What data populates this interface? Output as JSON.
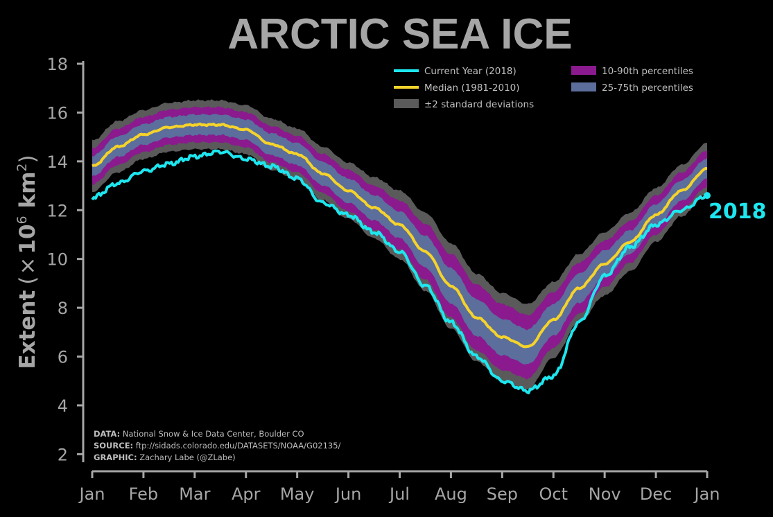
{
  "chart_data": {
    "type": "line",
    "title": "ARCTIC SEA ICE",
    "ylabel": "Extent (×10⁶ km²)",
    "ylabel_parts": {
      "main": "Extent",
      "open": "(",
      "times": "×",
      "base": "10",
      "exp1": "6",
      "unit": " km",
      "exp2": "2",
      "close": ")"
    },
    "ylim": [
      1.3,
      18
    ],
    "yticks": [
      "2",
      "4",
      "6",
      "8",
      "10",
      "12",
      "14",
      "16",
      "18"
    ],
    "xticks": [
      "Jan",
      "Feb",
      "Mar",
      "Apr",
      "May",
      "Jun",
      "Jul",
      "Aug",
      "Sep",
      "Oct",
      "Nov",
      "Dec",
      "Jan"
    ],
    "grid": false,
    "legend_position": "top-right",
    "legend": {
      "current": "Current Year (2018)",
      "median": "Median (1981-2010)",
      "std": "±2 standard deviations",
      "p10_90": "10-90th percentiles",
      "p25_75": "25-75th percentiles"
    },
    "end_label": "2018",
    "colors": {
      "current": "#1ee6ef",
      "median": "#f5d32a",
      "std": "#5a5a5a",
      "p10_90": "#8a1a8e",
      "p25_75": "#5b6e9c",
      "axis": "#a6a6a6"
    },
    "x_month": [
      0,
      0.5,
      1,
      1.5,
      2,
      2.5,
      3,
      3.5,
      4,
      4.5,
      5,
      5.5,
      6,
      6.5,
      7,
      7.5,
      8,
      8.5,
      9,
      9.5,
      10,
      10.5,
      11,
      11.5,
      12
    ],
    "series": [
      {
        "name": "Median (1981-2010)",
        "key": "median",
        "values": [
          13.8,
          14.6,
          15.1,
          15.4,
          15.5,
          15.5,
          15.3,
          14.7,
          14.3,
          13.5,
          12.8,
          12.1,
          11.4,
          10.3,
          8.9,
          7.6,
          6.8,
          6.4,
          7.5,
          8.8,
          9.8,
          10.7,
          11.8,
          12.8,
          13.7
        ]
      },
      {
        "name": "Current Year (2018)",
        "key": "current",
        "values": [
          12.5,
          13.1,
          13.6,
          13.9,
          14.2,
          14.4,
          14.1,
          13.8,
          13.3,
          12.3,
          11.8,
          11.1,
          10.3,
          8.9,
          7.4,
          6.0,
          5.0,
          4.6,
          5.2,
          7.4,
          9.3,
          10.5,
          11.4,
          12.0,
          12.6
        ]
      }
    ],
    "bands": {
      "p25_75_width": [
        0.42,
        0.42,
        0.42,
        0.42,
        0.42,
        0.42,
        0.42,
        0.45,
        0.45,
        0.48,
        0.5,
        0.52,
        0.55,
        0.65,
        0.72,
        0.75,
        0.75,
        0.72,
        0.65,
        0.6,
        0.55,
        0.48,
        0.45,
        0.42,
        0.42
      ],
      "p10_90_width": [
        0.75,
        0.75,
        0.72,
        0.72,
        0.72,
        0.72,
        0.72,
        0.75,
        0.75,
        0.8,
        0.85,
        0.9,
        1.0,
        1.15,
        1.3,
        1.35,
        1.35,
        1.3,
        1.15,
        1.05,
        0.95,
        0.85,
        0.8,
        0.75,
        0.75
      ],
      "std_width": [
        1.05,
        1.05,
        1.0,
        1.0,
        1.0,
        1.0,
        1.0,
        1.05,
        1.05,
        1.1,
        1.15,
        1.25,
        1.4,
        1.6,
        1.75,
        1.8,
        1.8,
        1.75,
        1.55,
        1.4,
        1.3,
        1.2,
        1.1,
        1.05,
        1.05
      ]
    }
  },
  "credits": {
    "data_key": "DATA:",
    "data_val": " National Snow & Ice Data Center, Boulder CO",
    "source_key": "SOURCE:",
    "source_val": " ftp://sidads.colorado.edu/DATASETS/NOAA/G02135/",
    "graphic_key": "GRAPHIC:",
    "graphic_val": " Zachary Labe (@ZLabe)"
  }
}
